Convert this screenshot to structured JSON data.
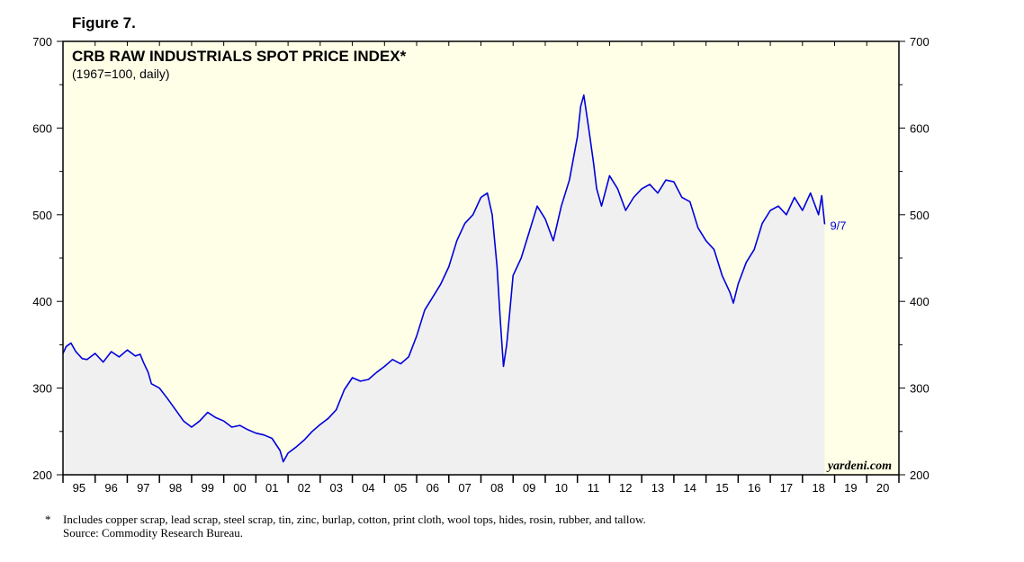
{
  "figure_label": "Figure 7.",
  "colors": {
    "line": "#0000dd",
    "plot_bg": "#ffffe8",
    "area_fill": "#f0f0f0",
    "axis": "#000000"
  },
  "watermark": "yardeni.com",
  "footnote": {
    "marker": "*",
    "text": "Includes copper scrap, lead scrap, steel scrap, tin, zinc, burlap, cotton, print cloth, wool tops, hides, rosin, rubber, and tallow.",
    "source": "Source: Commodity Research Bureau."
  },
  "chart_data": {
    "type": "line",
    "title": "CRB RAW INDUSTRIALS SPOT PRICE INDEX*",
    "subtitle": "(1967=100, daily)",
    "ylim": [
      200,
      700
    ],
    "yticks": [
      200,
      300,
      400,
      500,
      600,
      700
    ],
    "xlim": [
      1995.0,
      2021.0
    ],
    "xtick_labels": [
      "95",
      "96",
      "97",
      "98",
      "99",
      "00",
      "01",
      "02",
      "03",
      "04",
      "05",
      "06",
      "07",
      "08",
      "09",
      "10",
      "11",
      "12",
      "13",
      "14",
      "15",
      "16",
      "17",
      "18",
      "19",
      "20"
    ],
    "end_label": "9/7",
    "series": [
      {
        "x": [
          1995.0,
          1995.1,
          1995.25,
          1995.4,
          1995.5,
          1995.6,
          1995.75,
          1996.0,
          1996.25,
          1996.5,
          1996.75,
          1997.0,
          1997.25,
          1997.4,
          1997.5,
          1997.65,
          1997.75,
          1998.0,
          1998.25,
          1998.5,
          1998.75,
          1999.0,
          1999.25,
          1999.5,
          1999.75,
          2000.0,
          2000.25,
          2000.5,
          2000.75,
          2001.0,
          2001.25,
          2001.5,
          2001.75,
          2001.85,
          2002.0,
          2002.25,
          2002.5,
          2002.75,
          2003.0,
          2003.25,
          2003.5,
          2003.75,
          2004.0,
          2004.25,
          2004.5,
          2004.75,
          2005.0,
          2005.25,
          2005.5,
          2005.75,
          2006.0,
          2006.25,
          2006.5,
          2006.75,
          2007.0,
          2007.25,
          2007.5,
          2007.75,
          2008.0,
          2008.2,
          2008.35,
          2008.5,
          2008.6,
          2008.7,
          2008.8,
          2008.9,
          2009.0,
          2009.25,
          2009.5,
          2009.75,
          2010.0,
          2010.25,
          2010.5,
          2010.75,
          2011.0,
          2011.1,
          2011.2,
          2011.35,
          2011.5,
          2011.6,
          2011.75,
          2012.0,
          2012.25,
          2012.5,
          2012.75,
          2013.0,
          2013.25,
          2013.5,
          2013.75,
          2014.0,
          2014.25,
          2014.5,
          2014.75,
          2015.0,
          2015.25,
          2015.5,
          2015.75,
          2015.85,
          2016.0,
          2016.25,
          2016.5,
          2016.75,
          2017.0,
          2017.25,
          2017.5,
          2017.75,
          2018.0,
          2018.25,
          2018.5,
          2018.6,
          2018.69
        ],
        "y": [
          340,
          348,
          352,
          342,
          338,
          334,
          333,
          340,
          330,
          342,
          336,
          344,
          337,
          339,
          330,
          318,
          305,
          300,
          288,
          275,
          262,
          255,
          262,
          272,
          266,
          262,
          255,
          257,
          252,
          248,
          246,
          242,
          228,
          215,
          225,
          232,
          240,
          250,
          258,
          265,
          275,
          298,
          312,
          308,
          310,
          318,
          325,
          333,
          328,
          336,
          360,
          390,
          405,
          420,
          440,
          470,
          490,
          500,
          520,
          525,
          500,
          440,
          380,
          325,
          350,
          390,
          430,
          450,
          480,
          510,
          495,
          470,
          510,
          540,
          590,
          625,
          638,
          600,
          560,
          530,
          510,
          545,
          530,
          505,
          520,
          530,
          535,
          525,
          540,
          538,
          520,
          515,
          485,
          470,
          460,
          430,
          410,
          398,
          420,
          445,
          460,
          490,
          505,
          510,
          500,
          520,
          505,
          525,
          500,
          522,
          489
        ]
      }
    ]
  }
}
